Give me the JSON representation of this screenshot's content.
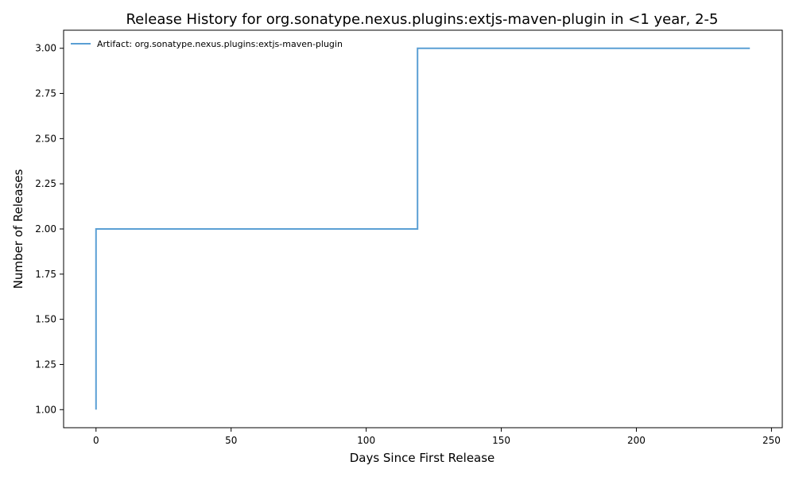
{
  "chart_data": {
    "type": "line",
    "drawstyle": "steps-post",
    "title": "Release History for org.sonatype.nexus.plugins:extjs-maven-plugin in <1 year, 2-5",
    "xlabel": "Days Since First Release",
    "ylabel": "Number of Releases",
    "xlim": [
      -12,
      254
    ],
    "ylim": [
      0.9,
      3.1
    ],
    "x_ticks": [
      0,
      50,
      100,
      150,
      200,
      250
    ],
    "y_ticks": [
      1.0,
      1.25,
      1.5,
      1.75,
      2.0,
      2.25,
      2.5,
      2.75,
      3.0
    ],
    "x_tick_labels": [
      "0",
      "50",
      "100",
      "150",
      "200",
      "250"
    ],
    "y_tick_labels": [
      "1.00",
      "1.25",
      "1.50",
      "1.75",
      "2.00",
      "2.25",
      "2.50",
      "2.75",
      "3.00"
    ],
    "grid": false,
    "legend_position": "top-left",
    "series": [
      {
        "name": "Artifact: org.sonatype.nexus.plugins:extjs-maven-plugin",
        "color": "#5a9fd4",
        "x": [
          0,
          0,
          119,
          242
        ],
        "y": [
          1,
          2,
          3,
          3
        ]
      }
    ]
  }
}
